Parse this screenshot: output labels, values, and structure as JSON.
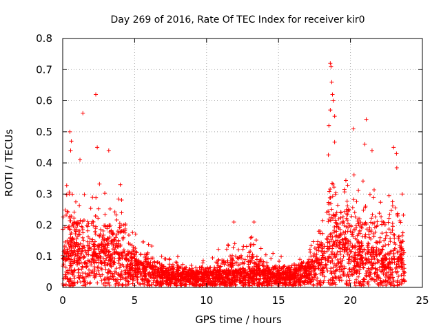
{
  "chart_data": {
    "type": "scatter",
    "title": "Day 269 of 2016, Rate Of TEC Index for receiver kir0",
    "xlabel": "GPS time / hours",
    "ylabel": "ROTI / TECUs",
    "xlim": [
      0,
      25
    ],
    "ylim": [
      0,
      0.8
    ],
    "xticks": [
      0,
      5,
      10,
      15,
      20,
      25
    ],
    "yticks": [
      0,
      0.1,
      0.2,
      0.3,
      0.4,
      0.5,
      0.6,
      0.7,
      0.8
    ],
    "xtick_labels": [
      "0",
      "5",
      "10",
      "15",
      "20",
      "25"
    ],
    "ytick_labels": [
      "0",
      "0.1",
      "0.2",
      "0.3",
      "0.4",
      "0.5",
      "0.6",
      "0.7",
      "0.8"
    ],
    "grid": true,
    "marker": "+",
    "color": "#ff0000",
    "series": [
      {
        "name": "kir0",
        "envelope": {
          "x": [
            0.0,
            0.5,
            1.0,
            1.5,
            2.0,
            2.5,
            3.0,
            3.5,
            4.0,
            4.5,
            5.0,
            5.5,
            6.0,
            6.5,
            7.0,
            7.5,
            8.0,
            9.0,
            10.0,
            11.0,
            12.0,
            13.0,
            14.0,
            15.0,
            16.0,
            17.0,
            17.5,
            18.0,
            18.5,
            19.0,
            19.5,
            20.0,
            20.5,
            21.0,
            21.5,
            22.0,
            22.5,
            23.0,
            23.5,
            23.8
          ],
          "typical": [
            0.1,
            0.12,
            0.11,
            0.1,
            0.1,
            0.11,
            0.12,
            0.12,
            0.11,
            0.08,
            0.07,
            0.06,
            0.06,
            0.05,
            0.04,
            0.035,
            0.035,
            0.035,
            0.035,
            0.04,
            0.04,
            0.04,
            0.04,
            0.035,
            0.04,
            0.05,
            0.07,
            0.09,
            0.13,
            0.14,
            0.12,
            0.11,
            0.1,
            0.1,
            0.1,
            0.09,
            0.08,
            0.09,
            0.1,
            0.08
          ],
          "peak": [
            0.4,
            0.35,
            0.3,
            0.32,
            0.3,
            0.36,
            0.3,
            0.27,
            0.33,
            0.25,
            0.18,
            0.15,
            0.16,
            0.12,
            0.1,
            0.09,
            0.1,
            0.09,
            0.09,
            0.14,
            0.15,
            0.18,
            0.13,
            0.1,
            0.1,
            0.12,
            0.16,
            0.3,
            0.55,
            0.45,
            0.35,
            0.4,
            0.33,
            0.4,
            0.35,
            0.36,
            0.3,
            0.45,
            0.32,
            0.28
          ]
        },
        "outliers": [
          {
            "x": 0.5,
            "y": 0.5
          },
          {
            "x": 0.6,
            "y": 0.47
          },
          {
            "x": 0.55,
            "y": 0.44
          },
          {
            "x": 1.4,
            "y": 0.56
          },
          {
            "x": 1.2,
            "y": 0.41
          },
          {
            "x": 2.3,
            "y": 0.62
          },
          {
            "x": 2.4,
            "y": 0.45
          },
          {
            "x": 3.2,
            "y": 0.44
          },
          {
            "x": 4.0,
            "y": 0.33
          },
          {
            "x": 11.9,
            "y": 0.21
          },
          {
            "x": 13.3,
            "y": 0.21
          },
          {
            "x": 18.6,
            "y": 0.72
          },
          {
            "x": 18.65,
            "y": 0.71
          },
          {
            "x": 18.7,
            "y": 0.66
          },
          {
            "x": 18.75,
            "y": 0.62
          },
          {
            "x": 18.8,
            "y": 0.6
          },
          {
            "x": 18.6,
            "y": 0.57
          },
          {
            "x": 18.9,
            "y": 0.55
          },
          {
            "x": 18.5,
            "y": 0.52
          },
          {
            "x": 20.2,
            "y": 0.51
          },
          {
            "x": 21.1,
            "y": 0.54
          },
          {
            "x": 21.0,
            "y": 0.46
          },
          {
            "x": 21.5,
            "y": 0.44
          },
          {
            "x": 23.0,
            "y": 0.45
          },
          {
            "x": 23.2,
            "y": 0.43
          },
          {
            "x": 23.6,
            "y": 0.3
          }
        ]
      }
    ]
  }
}
